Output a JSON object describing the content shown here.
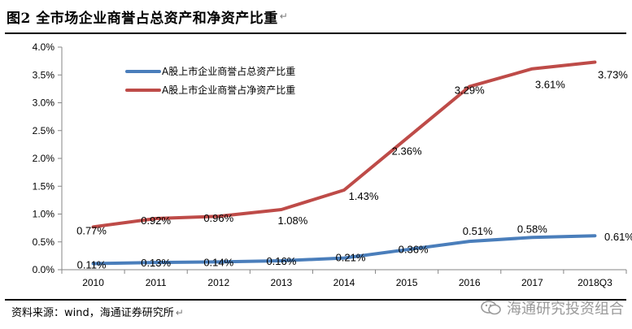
{
  "header": {
    "title": "图2  全市场企业商誉占总资产和净资产比重",
    "para_mark": "↵"
  },
  "footer": {
    "source": "资料来源：wind，海通证券研究所",
    "para_mark": "↵",
    "watermark": "海通研究投资组合"
  },
  "colors": {
    "blue_series": "#4a7ebb",
    "red_series": "#be4b48",
    "axis": "#868686"
  },
  "chart_data": {
    "type": "line",
    "title": "",
    "xlabel": "",
    "ylabel": "",
    "categories": [
      "2010",
      "2011",
      "2012",
      "2013",
      "2014",
      "2015",
      "2016",
      "2017",
      "2018Q3"
    ],
    "ylim": [
      0,
      4.0
    ],
    "yticks": [
      "0.0%",
      "0.5%",
      "1.0%",
      "1.5%",
      "2.0%",
      "2.5%",
      "3.0%",
      "3.5%",
      "4.0%"
    ],
    "legend_position": "top-left",
    "grid": false,
    "series": [
      {
        "name": "A股上市企业商誉占总资产比重",
        "color": "#4a7ebb",
        "values": [
          0.11,
          0.13,
          0.14,
          0.16,
          0.21,
          0.36,
          0.51,
          0.58,
          0.61
        ],
        "labels": [
          "0.11%",
          "0.13%",
          "0.14%",
          "0.16%",
          "0.21%",
          "0.36%",
          "0.51%",
          "0.58%",
          "0.61%"
        ]
      },
      {
        "name": "A股上市企业商誉占净资产比重",
        "color": "#be4b48",
        "values": [
          0.77,
          0.92,
          0.96,
          1.08,
          1.43,
          2.36,
          3.29,
          3.61,
          3.73
        ],
        "labels": [
          "0.77%",
          "0.92%",
          "0.96%",
          "1.08%",
          "1.43%",
          "2.36%",
          "3.29%",
          "3.61%",
          "3.73%"
        ]
      }
    ]
  }
}
